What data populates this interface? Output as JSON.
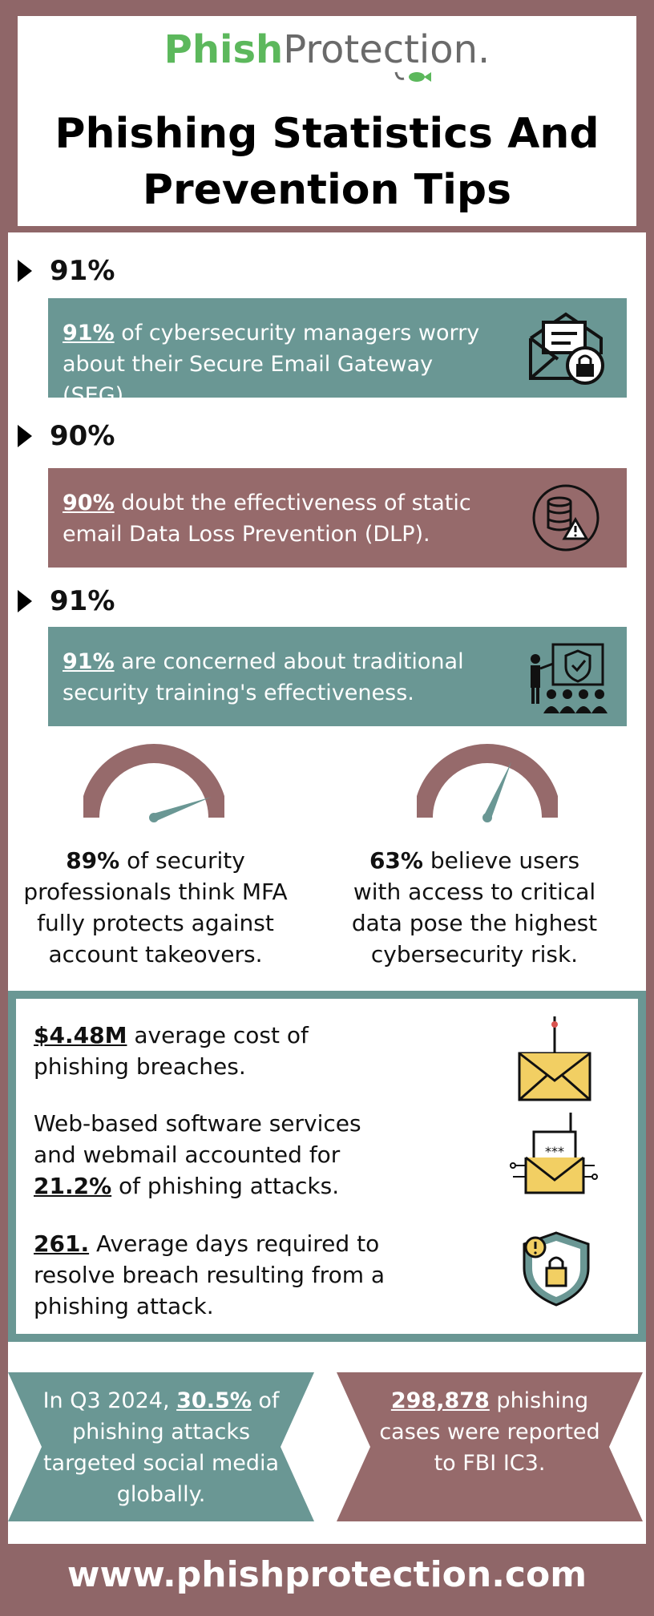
{
  "header": {
    "logo_part1": "Phish",
    "logo_part2": "Protection.",
    "title_line1": "Phishing Statistics And",
    "title_line2": "Prevention Tips"
  },
  "stats": [
    {
      "heading": "91%",
      "highlight": "91%",
      "text": " of cybersecurity managers worry about their Secure Email Gateway (SEG).",
      "icon": "envelope-lock-icon"
    },
    {
      "heading": "90%",
      "highlight": "90%",
      "text": " doubt the effectiveness of static email Data Loss Prevention (DLP).",
      "icon": "database-warning-icon"
    },
    {
      "heading": "91%",
      "highlight": "91%",
      "text": " are concerned about traditional security training's effectiveness.",
      "icon": "security-training-icon"
    }
  ],
  "gauges": [
    {
      "highlight": "89%",
      "text": " of security professionals think MFA fully protects against account takeovers.",
      "level": 0.89
    },
    {
      "highlight": "63%",
      "text": " believe users with access to critical data pose the highest cybersecurity risk.",
      "level": 0.63
    }
  ],
  "costs": [
    {
      "pre": "",
      "highlight": "$4.48M",
      "post": " average cost of phishing breaches.",
      "icon": "phishing-hook-envelope-icon"
    },
    {
      "pre": "Web-based software services and webmail accounted for ",
      "highlight": "21.2%",
      "post": " of phishing attacks.",
      "icon": "password-email-hook-icon"
    },
    {
      "pre": "",
      "highlight": "261.",
      "post": " Average days required to resolve breach resulting from a phishing attack.",
      "icon": "shield-lock-alert-icon"
    }
  ],
  "banners": [
    {
      "pre": "In Q3 2024, ",
      "highlight": "30.5%",
      "post": " of phishing attacks targeted social media globally."
    },
    {
      "pre": "",
      "highlight": "298,878",
      "post": " phishing cases were reported to FBI IC3."
    }
  ],
  "footer": {
    "url": "www.phishprotection.com"
  },
  "colors": {
    "mauve": "#8f6668",
    "teal": "#6a9794",
    "green": "#5cb85c",
    "gold": "#f2cf63"
  }
}
